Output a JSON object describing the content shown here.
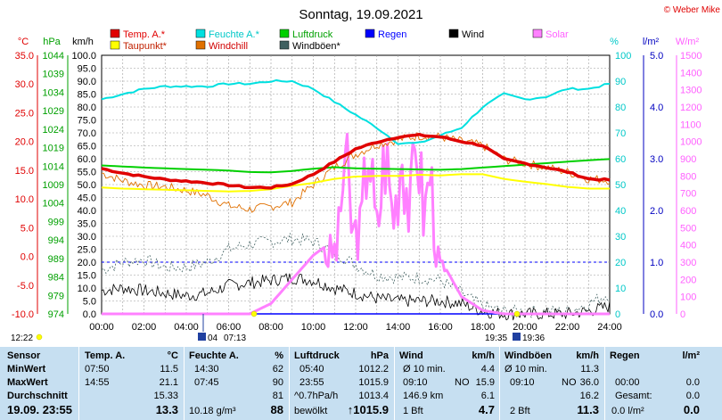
{
  "title": "Sonntag, 19.09.2021",
  "copyright": "© Weber Mike",
  "colors": {
    "temp": "#e00000",
    "dew": "#ffff00",
    "humidity": "#00e0e0",
    "windchill": "#e07000",
    "pressure": "#00d000",
    "gust": "#406060",
    "rain": "#0000ff",
    "wind": "#000000",
    "solar": "#ff80ff"
  },
  "legend": [
    {
      "label": "Temp. A.*",
      "color": "#e00000"
    },
    {
      "label": "Feuchte A.*",
      "color": "#00e0e0"
    },
    {
      "label": "Luftdruck",
      "color": "#00d000"
    },
    {
      "label": "Regen",
      "color": "#0000ff"
    },
    {
      "label": "Wind",
      "color": "#000000"
    },
    {
      "label": "Solar",
      "color": "#ff80ff"
    },
    {
      "label": "Taupunkt*",
      "color": "#ffff00"
    },
    {
      "label": "Windchill",
      "color": "#e07000"
    },
    {
      "label": "Windböen*",
      "color": "#406060"
    }
  ],
  "axis_units": {
    "temp": "°C",
    "pressure": "hPa",
    "wind": "km/h",
    "humidity": "%",
    "rain": "l/m²",
    "solar": "W/m²"
  },
  "axis_ticks": {
    "temp": [
      "35.0",
      "30.0",
      "25.0",
      "20.0",
      "15.0",
      "10.0",
      "5.0",
      "0.0",
      "-5.0",
      "-10.0"
    ],
    "pressure": [
      "1044",
      "1039",
      "1034",
      "1029",
      "1024",
      "1019",
      "1014",
      "1009",
      "1004",
      "999",
      "994",
      "989",
      "984",
      "979",
      "974"
    ],
    "wind": [
      "100.0",
      "95.0",
      "90.0",
      "85.0",
      "80.0",
      "75.0",
      "70.0",
      "65.0",
      "60.0",
      "55.0",
      "50.0",
      "45.0",
      "40.0",
      "35.0",
      "30.0",
      "25.0",
      "20.0",
      "15.0",
      "10.0",
      "5.0",
      "0.0"
    ],
    "humidity": [
      "100",
      "90",
      "80",
      "70",
      "60",
      "50",
      "40",
      "30",
      "20",
      "10",
      "0"
    ],
    "rain": [
      "5.0",
      "4.0",
      "3.0",
      "2.0",
      "1.0",
      "0.0"
    ],
    "solar": [
      "1500",
      "1400",
      "1300",
      "1200",
      "1100",
      "1000",
      "900",
      "800",
      "700",
      "600",
      "500",
      "400",
      "300",
      "200",
      "100",
      "0"
    ],
    "time": [
      "00:00",
      "02:00",
      "04:00",
      "06:00",
      "08:00",
      "10:00",
      "12:00",
      "14:00",
      "16:00",
      "18:00",
      "20:00",
      "22:00",
      "24:00"
    ]
  },
  "sun_moon": {
    "sunrise": "07:13",
    "sunset": "19:35",
    "moonrise_prefix": "04",
    "moonset": "19:36",
    "moon_label": "12:22"
  },
  "chart_data": {
    "type": "line",
    "title": "Sonntag, 19.09.2021",
    "x_hours": [
      0,
      1,
      2,
      3,
      4,
      5,
      6,
      7,
      8,
      9,
      10,
      11,
      12,
      13,
      14,
      15,
      16,
      17,
      18,
      19,
      20,
      21,
      22,
      23,
      24
    ],
    "series": [
      {
        "name": "Temp. A.*",
        "unit": "°C",
        "values": [
          15.3,
          14.5,
          13.9,
          13.4,
          13.1,
          12.8,
          12.4,
          12.0,
          12.0,
          12.6,
          14.3,
          16.5,
          18.7,
          19.9,
          20.8,
          21.1,
          20.8,
          20.0,
          19.3,
          16.9,
          16.2,
          15.5,
          14.7,
          13.5,
          13.3
        ]
      },
      {
        "name": "Taupunkt*",
        "unit": "°C",
        "values": [
          12.0,
          11.8,
          11.7,
          11.6,
          11.5,
          11.4,
          11.3,
          11.4,
          11.7,
          12.3,
          12.8,
          13.5,
          13.9,
          14.0,
          14.0,
          14.2,
          14.1,
          14.3,
          14.3,
          13.5,
          13.0,
          12.6,
          12.1,
          11.8,
          11.8
        ]
      },
      {
        "name": "Windchill",
        "unit": "°C",
        "values": [
          14.5,
          13.2,
          12.4,
          12.1,
          11.5,
          10.6,
          8.8,
          8.2,
          8.7,
          9.4,
          12.5,
          15.5,
          17.8,
          19.5,
          20.3,
          21.0,
          20.8,
          20.0,
          19.3,
          16.9,
          16.2,
          15.5,
          14.7,
          13.5,
          13.3
        ]
      },
      {
        "name": "Feuchte A.*",
        "unit": "%",
        "values": [
          83,
          85,
          87,
          88,
          88,
          88,
          89,
          89,
          90,
          90,
          87,
          82,
          77,
          72,
          66,
          66,
          69,
          72,
          80,
          85,
          83,
          84,
          87,
          87,
          89
        ]
      },
      {
        "name": "Luftdruck",
        "unit": "hPa",
        "values": [
          1014.2,
          1013.9,
          1013.6,
          1013.4,
          1013.2,
          1013.0,
          1012.8,
          1012.4,
          1012.3,
          1012.7,
          1013.3,
          1013.7,
          1013.4,
          1013.3,
          1013.2,
          1013.1,
          1013.0,
          1013.2,
          1013.6,
          1014.0,
          1014.4,
          1014.8,
          1015.2,
          1015.6,
          1015.9
        ]
      },
      {
        "name": "Wind",
        "unit": "km/h",
        "values": [
          9,
          10,
          9,
          8,
          7,
          8,
          11,
          12,
          13,
          14,
          13,
          10,
          8,
          6,
          5,
          5,
          5,
          4,
          1,
          0,
          0,
          0,
          0,
          1,
          3
        ]
      },
      {
        "name": "Windböen*",
        "unit": "km/h",
        "values": [
          17,
          20,
          21,
          18,
          18,
          20,
          25,
          27,
          28,
          29,
          28,
          24,
          19,
          15,
          14,
          14,
          13,
          8,
          3,
          1,
          1,
          1,
          1,
          4,
          8
        ]
      },
      {
        "name": "Solar",
        "unit": "W/m²",
        "values": [
          0,
          0,
          0,
          0,
          0,
          0,
          0,
          0,
          60,
          200,
          340,
          430,
          560,
          580,
          720,
          600,
          320,
          100,
          20,
          0,
          0,
          0,
          0,
          0,
          0
        ]
      },
      {
        "name": "Regen",
        "unit": "l/m²",
        "values": [
          0,
          0,
          0,
          0,
          0,
          0,
          0,
          0,
          0,
          0,
          0,
          0,
          0,
          0,
          0,
          0,
          0,
          0,
          0,
          0,
          0,
          0,
          0,
          0,
          0
        ]
      }
    ],
    "solar_peaks": [
      {
        "h": 11.5,
        "v": 1100
      },
      {
        "h": 12.6,
        "v": 1220
      },
      {
        "h": 13.4,
        "v": 1140
      },
      {
        "h": 14.2,
        "v": 1170
      },
      {
        "h": 14.9,
        "v": 1260
      },
      {
        "h": 15.5,
        "v": 1000
      }
    ],
    "ylim": {
      "temp": [
        -10,
        35
      ],
      "pressure": [
        974,
        1044
      ],
      "wind": [
        0,
        100
      ],
      "humidity": [
        0,
        100
      ],
      "rain": [
        0,
        5
      ],
      "solar": [
        0,
        1500
      ]
    },
    "grid": true,
    "rain_scale_marker": 1.0
  },
  "table": {
    "headers": {
      "sensor": "Sensor",
      "temp": "Temp. A.",
      "temp_unit": "°C",
      "hum": "Feuchte A.",
      "hum_unit": "%",
      "press": "Luftdruck",
      "press_unit": "hPa",
      "wind": "Wind",
      "wind_unit": "km/h",
      "gust": "Windböen",
      "gust_unit": "km/h",
      "rain": "Regen",
      "rain_unit": "l/m²"
    },
    "row_labels": {
      "min": "MinWert",
      "max": "MaxWert",
      "avg": "Durchschnitt",
      "cur": "19.09.  23:55"
    },
    "temp": {
      "min_time": "07:50",
      "min": "11.5",
      "max_time": "14:55",
      "max": "21.1",
      "avg": "15.33",
      "cur": "13.3"
    },
    "hum": {
      "min_time": "14:30",
      "min": "62",
      "max_time": "07:45",
      "max": "90",
      "avg": "81",
      "abs": "10.18 g/m³",
      "cur": "88"
    },
    "press": {
      "min_time": "05:40",
      "min": "1012.2",
      "max_time": "23:55",
      "max": "1015.9",
      "trend": "^0.7hPa/h",
      "trend_val": "1013.4",
      "cur_label": "bewölkt",
      "cur": "↑1015.9"
    },
    "wind": {
      "min_label": "Ø 10 min.",
      "min": "4.4",
      "max_time": "09:10",
      "max_dir": "NO",
      "max": "15.9",
      "dist": "146.9 km",
      "dist_val": "6.1",
      "cur_label": "1 Bft",
      "cur": "4.7"
    },
    "gust": {
      "min_label": "Ø 10 min.",
      "min": "11.3",
      "max_time": "09:10",
      "max_dir": "NO",
      "max": "36.0",
      "avg": "16.2",
      "cur_label": "2 Bft",
      "cur": "11.3"
    },
    "rain": {
      "max_time": "00:00",
      "max": "0.0",
      "total_label": "Gesamt:",
      "total": "0.0",
      "cur_label": "0.0 l/m²",
      "cur": "0.0"
    }
  }
}
